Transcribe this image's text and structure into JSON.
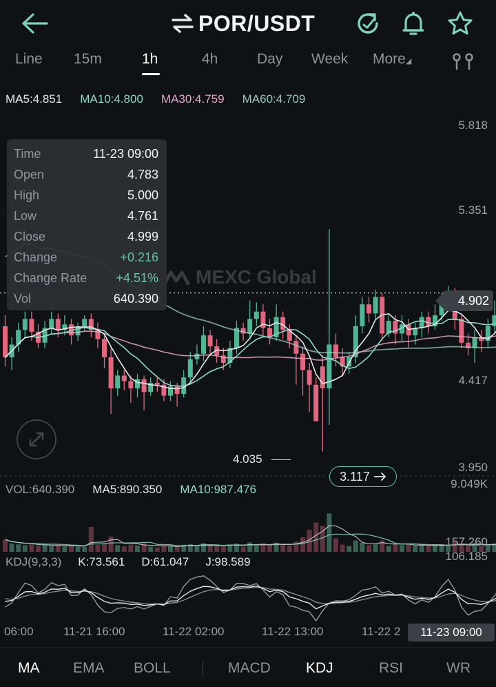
{
  "header": {
    "title": "POR/USDT",
    "icons": [
      "back-arrow-icon",
      "swap-icon",
      "refresh-icon",
      "bell-icon",
      "star-icon"
    ]
  },
  "timeframes": {
    "items": [
      "Line",
      "15m",
      "1h",
      "4h",
      "Day",
      "Week",
      "More"
    ],
    "active": "1h"
  },
  "ma_legend": {
    "ma5": "MA5:4.851",
    "ma10": "MA10:4.800",
    "ma30": "MA30:4.759",
    "ma60": "MA60:4.709"
  },
  "price_axis": [
    "5.818",
    "5.351",
    "4.417",
    "3.950"
  ],
  "current_price": "4.902",
  "tooltip": {
    "rows": [
      {
        "label": "Time",
        "value": "11-23 09:00"
      },
      {
        "label": "Open",
        "value": "4.783"
      },
      {
        "label": "High",
        "value": "5.000"
      },
      {
        "label": "Low",
        "value": "4.761"
      },
      {
        "label": "Close",
        "value": "4.999"
      },
      {
        "label": "Change",
        "value": "+0.216"
      },
      {
        "label": "Change Rate",
        "value": "+4.51%"
      },
      {
        "label": "Vol",
        "value": "640.390"
      }
    ]
  },
  "watermark": "MEXC Global",
  "low_annotation": "4.035",
  "prev_button": "3.117",
  "volume": {
    "vol": "VOL:640.390",
    "ma5": "MA5:890.350",
    "ma10": "MA10:987.476",
    "axis_top": "9.049K",
    "axis_bottom": "157.260"
  },
  "kdj": {
    "label": "KDJ(9,3,3)",
    "k": "K:73.561",
    "d": "D:61.047",
    "j": "J:98.589",
    "axis_top": "106.185"
  },
  "time_axis": [
    "06:00",
    "11-21 16:00",
    "11-22 02:00",
    "11-22 13:00",
    "11-22 2"
  ],
  "time_active": "11-23 09:00",
  "indicators": {
    "items": [
      "MA",
      "EMA",
      "BOLL",
      "MACD",
      "KDJ",
      "RSI",
      "WR"
    ],
    "active_main": "MA",
    "active_sub": "KDJ"
  },
  "colors": {
    "up": "#4fb594",
    "down": "#e0677e",
    "background": "#0f1215"
  },
  "chart_data": {
    "type": "candlestick",
    "price_range": [
      3.95,
      5.818
    ],
    "candles": [
      [
        4.72,
        4.55,
        4.78,
        4.5
      ],
      [
        4.55,
        4.62,
        4.66,
        4.48
      ],
      [
        4.62,
        4.7,
        4.74,
        4.58
      ],
      [
        4.7,
        4.76,
        4.8,
        4.66
      ],
      [
        4.76,
        4.69,
        4.8,
        4.64
      ],
      [
        4.69,
        4.63,
        4.73,
        4.6
      ],
      [
        4.63,
        4.71,
        4.75,
        4.6
      ],
      [
        4.71,
        4.76,
        4.8,
        4.68
      ],
      [
        4.76,
        4.7,
        4.79,
        4.66
      ],
      [
        4.7,
        4.73,
        4.78,
        4.67
      ],
      [
        4.73,
        4.67,
        4.76,
        4.62
      ],
      [
        4.67,
        4.72,
        4.74,
        4.64
      ],
      [
        4.72,
        4.76,
        4.78,
        4.69
      ],
      [
        4.76,
        4.7,
        4.79,
        4.66
      ],
      [
        4.7,
        4.65,
        4.74,
        4.6
      ],
      [
        4.65,
        4.55,
        4.67,
        4.49
      ],
      [
        4.55,
        4.38,
        4.6,
        4.24
      ],
      [
        4.38,
        4.45,
        4.48,
        4.34
      ],
      [
        4.45,
        4.42,
        4.48,
        4.37
      ],
      [
        4.42,
        4.38,
        4.45,
        4.3
      ],
      [
        4.38,
        4.43,
        4.46,
        4.33
      ],
      [
        4.43,
        4.36,
        4.45,
        4.26
      ],
      [
        4.36,
        4.41,
        4.44,
        4.34
      ],
      [
        4.41,
        4.4,
        4.44,
        4.36
      ],
      [
        4.4,
        4.34,
        4.43,
        4.31
      ],
      [
        4.34,
        4.39,
        4.42,
        4.31
      ],
      [
        4.39,
        4.35,
        4.41,
        4.28
      ],
      [
        4.35,
        4.44,
        4.48,
        4.33
      ],
      [
        4.44,
        4.54,
        4.58,
        4.41
      ],
      [
        4.54,
        4.57,
        4.62,
        4.51
      ],
      [
        4.57,
        4.67,
        4.72,
        4.53
      ],
      [
        4.67,
        4.61,
        4.7,
        4.57
      ],
      [
        4.61,
        4.56,
        4.65,
        4.52
      ],
      [
        4.56,
        4.52,
        4.6,
        4.48
      ],
      [
        4.52,
        4.6,
        4.64,
        4.49
      ],
      [
        4.6,
        4.71,
        4.75,
        4.57
      ],
      [
        4.71,
        4.68,
        4.74,
        4.64
      ],
      [
        4.68,
        4.76,
        4.86,
        4.65
      ],
      [
        4.76,
        4.8,
        4.85,
        4.72
      ],
      [
        4.8,
        4.71,
        4.84,
        4.66
      ],
      [
        4.71,
        4.66,
        4.76,
        4.62
      ],
      [
        4.66,
        4.77,
        4.84,
        4.64
      ],
      [
        4.77,
        4.7,
        4.8,
        4.65
      ],
      [
        4.7,
        4.64,
        4.73,
        4.6
      ],
      [
        4.64,
        4.57,
        4.67,
        4.4
      ],
      [
        4.57,
        4.48,
        4.61,
        4.34
      ],
      [
        4.48,
        4.4,
        4.52,
        4.25
      ],
      [
        4.4,
        4.2,
        4.44,
        4.25
      ],
      [
        4.5,
        4.38,
        4.56,
        4.035
      ],
      [
        4.38,
        4.62,
        5.25,
        4.18
      ],
      [
        4.62,
        4.55,
        4.68,
        4.5
      ],
      [
        4.55,
        4.5,
        4.6,
        4.45
      ],
      [
        4.5,
        4.55,
        4.58,
        4.46
      ],
      [
        4.55,
        4.72,
        4.78,
        4.52
      ],
      [
        4.72,
        4.84,
        4.88,
        4.68
      ],
      [
        4.84,
        4.79,
        4.88,
        4.74
      ],
      [
        4.79,
        4.88,
        4.92,
        4.76
      ],
      [
        4.88,
        4.68,
        4.9,
        4.64
      ],
      [
        4.68,
        4.75,
        4.78,
        4.66
      ],
      [
        4.75,
        4.68,
        4.78,
        4.62
      ],
      [
        4.68,
        4.73,
        4.78,
        4.64
      ],
      [
        4.73,
        4.67,
        4.76,
        4.6
      ],
      [
        4.67,
        4.71,
        4.74,
        4.62
      ],
      [
        4.71,
        4.77,
        4.8,
        4.66
      ],
      [
        4.77,
        4.72,
        4.8,
        4.68
      ],
      [
        4.72,
        4.78,
        4.84,
        4.7
      ],
      [
        4.78,
        4.85,
        4.9,
        4.75
      ],
      [
        4.85,
        4.91,
        4.94,
        4.81
      ],
      [
        4.91,
        4.76,
        4.93,
        4.7
      ],
      [
        4.76,
        4.63,
        4.78,
        4.6
      ],
      [
        4.63,
        4.6,
        4.68,
        4.56
      ],
      [
        4.6,
        4.66,
        4.7,
        4.52
      ],
      [
        4.66,
        4.64,
        4.7,
        4.58
      ],
      [
        4.64,
        4.72,
        4.76,
        4.6
      ],
      [
        4.72,
        4.78,
        4.86,
        4.68
      ],
      [
        4.78,
        4.84,
        4.89,
        4.75
      ],
      [
        4.783,
        4.999,
        5.0,
        4.761
      ]
    ],
    "volume_max": 9049,
    "kdj_max": 106.185
  }
}
